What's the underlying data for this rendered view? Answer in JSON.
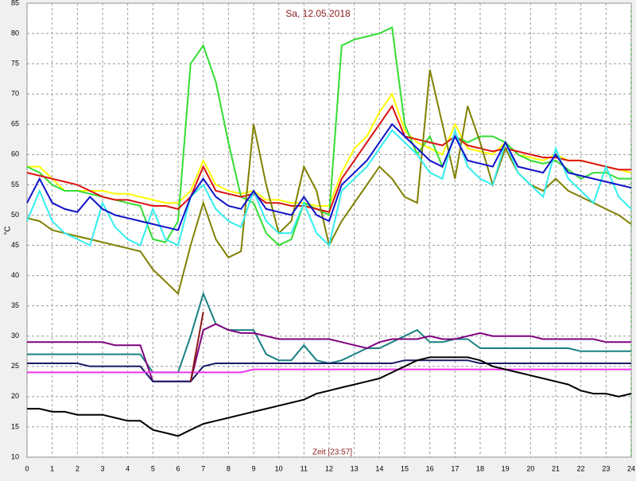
{
  "chart_data": {
    "type": "line",
    "title": "Sa, 12.05.2018",
    "xlabel": "Zeit [23:57]",
    "ylabel": "°C",
    "x": [
      0,
      0.5,
      1,
      1.5,
      2,
      2.5,
      3,
      3.5,
      4,
      4.5,
      5,
      5.5,
      6,
      6.5,
      7,
      7.5,
      8,
      8.5,
      9,
      9.5,
      10,
      10.5,
      11,
      11.5,
      12,
      12.5,
      13,
      13.5,
      14,
      14.5,
      15,
      15.5,
      16,
      16.5,
      17,
      17.5,
      18,
      18.5,
      19,
      19.5,
      20,
      20.5,
      21,
      21.5,
      22,
      22.5,
      23,
      23.5,
      24
    ],
    "xlim": [
      0,
      24
    ],
    "xticks": [
      0,
      1,
      2,
      3,
      4,
      5,
      6,
      7,
      8,
      9,
      10,
      11,
      12,
      13,
      14,
      15,
      16,
      17,
      18,
      19,
      20,
      21,
      22,
      23,
      24
    ],
    "ylim": [
      10,
      85
    ],
    "yticks": [
      10,
      15,
      20,
      25,
      30,
      35,
      40,
      45,
      50,
      55,
      60,
      65,
      70,
      75,
      80,
      85
    ],
    "grid": true,
    "series": [
      {
        "color": "#ffff00",
        "values": [
          58,
          58,
          56,
          54,
          54,
          54,
          54,
          53.5,
          53.5,
          53,
          52.5,
          52,
          52,
          54,
          59,
          55,
          54,
          53.5,
          54,
          52.5,
          52.5,
          52,
          52,
          51.5,
          51.5,
          57,
          61,
          63,
          67,
          70,
          64,
          62,
          61,
          60,
          65,
          61,
          60.5,
          60,
          62,
          60,
          59.5,
          59,
          60,
          59,
          59,
          58.5,
          58,
          57.5,
          57
        ]
      },
      {
        "color": "#33dd33",
        "values": [
          58,
          57,
          55,
          54,
          54,
          53.5,
          53,
          52.5,
          52,
          51.5,
          46,
          45.5,
          49,
          75,
          78,
          72,
          62,
          53,
          52,
          47,
          45,
          46,
          52,
          51,
          50,
          78,
          79,
          79.5,
          80,
          81,
          65,
          60,
          63,
          58,
          63,
          62,
          63,
          63,
          62,
          60,
          59,
          58.5,
          59,
          57.5,
          56,
          57,
          57,
          56,
          56
        ]
      },
      {
        "color": "#dd1111",
        "values": [
          57,
          56.5,
          56,
          55.5,
          55,
          54,
          53,
          52.5,
          52.5,
          52,
          51.5,
          51.5,
          51,
          53,
          58,
          54,
          53.5,
          53,
          53.5,
          52,
          52,
          51.5,
          51.5,
          51,
          50.5,
          56,
          59,
          62,
          65,
          68,
          63,
          62.5,
          62,
          61.5,
          63,
          61.5,
          61,
          60.5,
          61,
          60.5,
          60,
          59.5,
          59.5,
          59,
          59,
          58.5,
          58,
          57.5,
          57.5
        ]
      },
      {
        "color": "#808000",
        "values": [
          49.5,
          49,
          47.5,
          47,
          46.5,
          46,
          45.5,
          45,
          44.5,
          44,
          41,
          39,
          37,
          45,
          52,
          46,
          43,
          44,
          65,
          55,
          47,
          49,
          58,
          54,
          45,
          49,
          52,
          55,
          58,
          56,
          53,
          52,
          74,
          65,
          56,
          68,
          62,
          55,
          61,
          57,
          55,
          54,
          56,
          54,
          53,
          52,
          51,
          50,
          48.5
        ]
      },
      {
        "color": "#33eeee",
        "values": [
          49,
          54,
          49,
          47,
          46,
          45,
          52,
          48,
          46,
          45,
          51,
          46,
          45,
          53,
          55,
          51,
          49,
          48,
          54,
          49,
          47,
          47,
          52,
          47,
          45,
          54,
          56,
          58,
          61,
          64,
          62,
          60,
          57,
          56,
          64,
          58,
          56,
          55,
          62,
          57,
          55,
          53,
          61,
          56,
          54,
          52,
          58,
          53,
          51
        ]
      },
      {
        "color": "#1111cc",
        "values": [
          52,
          56,
          52,
          51,
          50.5,
          53,
          51,
          50,
          49.5,
          49,
          48.5,
          48,
          47.5,
          53,
          56,
          53,
          51.5,
          51,
          54,
          51,
          50.5,
          50,
          53,
          50,
          49,
          55,
          57,
          59,
          62,
          65,
          63,
          61,
          59,
          58,
          63,
          59,
          58.5,
          58,
          62,
          58,
          57.5,
          57,
          60,
          57,
          56.5,
          56,
          55.5,
          55,
          54.5
        ]
      },
      {
        "color": "#1a8080",
        "values": [
          27,
          27,
          27,
          27,
          27,
          27,
          27,
          27,
          27,
          27,
          24,
          24,
          24,
          30,
          37,
          32,
          31,
          31,
          31,
          27,
          26,
          26,
          28.5,
          26,
          25.5,
          26,
          27,
          28,
          28,
          29,
          30,
          31,
          29,
          29,
          29.5,
          29.5,
          28,
          28,
          28,
          28,
          28,
          28,
          28,
          28,
          27.5,
          27.5,
          27.5,
          27.5,
          27.5
        ]
      },
      {
        "color": "#800080",
        "values": [
          29,
          29,
          29,
          29,
          29,
          29,
          29,
          28.5,
          28.5,
          28.5,
          22.5,
          22.5,
          22.5,
          22.5,
          31,
          32,
          31,
          30.5,
          30.5,
          30,
          29.5,
          29.5,
          29.5,
          29.5,
          29.5,
          29,
          28.5,
          28,
          29,
          29.5,
          29.5,
          29.5,
          30,
          29.5,
          29.5,
          30,
          30.5,
          30,
          30,
          30,
          30,
          29.5,
          29.5,
          29.5,
          29.5,
          29.5,
          29,
          29,
          29
        ]
      },
      {
        "color": "#1a1a66",
        "values": [
          25.5,
          25.5,
          25.5,
          25.5,
          25.5,
          25,
          25,
          25,
          25,
          25,
          22.5,
          22.5,
          22.5,
          22.5,
          25,
          25.5,
          25.5,
          25.5,
          25.5,
          25.5,
          25.5,
          25.5,
          25.5,
          25.5,
          25.5,
          25.5,
          25.5,
          25.5,
          25.5,
          25.5,
          26,
          26,
          26,
          26,
          26,
          26,
          25.5,
          25.5,
          25.5,
          25.5,
          25.5,
          25.5,
          25.5,
          25.5,
          25.5,
          25.5,
          25.5,
          25.5,
          25.5
        ]
      },
      {
        "color": "#ee33ee",
        "values": [
          24,
          24,
          24,
          24,
          24,
          24,
          24,
          24,
          24,
          24,
          24,
          24,
          24,
          24,
          24,
          24,
          24,
          24,
          24.5,
          24.5,
          24.5,
          24.5,
          24.5,
          24.5,
          24.5,
          24.5,
          24.5,
          24.5,
          24.5,
          24.5,
          24.5,
          24.5,
          24.5,
          24.5,
          24.5,
          24.5,
          24.5,
          24.5,
          24.5,
          24.5,
          24.5,
          24.5,
          24.5,
          24.5,
          24.5,
          24.5,
          24.5,
          24.5,
          24.5
        ]
      },
      {
        "color": "#000000",
        "values": [
          18,
          18,
          17.5,
          17.5,
          17,
          17,
          17,
          16.5,
          16,
          16,
          14.5,
          14,
          13.5,
          14.5,
          15.5,
          16,
          16.5,
          17,
          17.5,
          18,
          18.5,
          19,
          19.5,
          20.5,
          21,
          21.5,
          22,
          22.5,
          23,
          24,
          25,
          26,
          26.5,
          26.5,
          26.5,
          26.5,
          26,
          25,
          24.5,
          24,
          23.5,
          23,
          22.5,
          22,
          21,
          20.5,
          20.5,
          20,
          20.5
        ]
      },
      {
        "color": "#8b1a1a",
        "values": [
          null,
          null,
          null,
          null,
          null,
          null,
          null,
          null,
          null,
          null,
          null,
          null,
          null,
          22.5,
          34,
          null,
          null,
          null,
          null,
          null,
          null,
          null,
          null,
          null,
          null,
          null,
          null,
          null,
          null,
          null,
          null,
          null,
          null,
          null,
          null,
          null,
          null,
          null,
          null,
          null,
          null,
          null,
          null,
          null,
          null,
          null,
          null,
          null,
          null
        ]
      }
    ]
  }
}
